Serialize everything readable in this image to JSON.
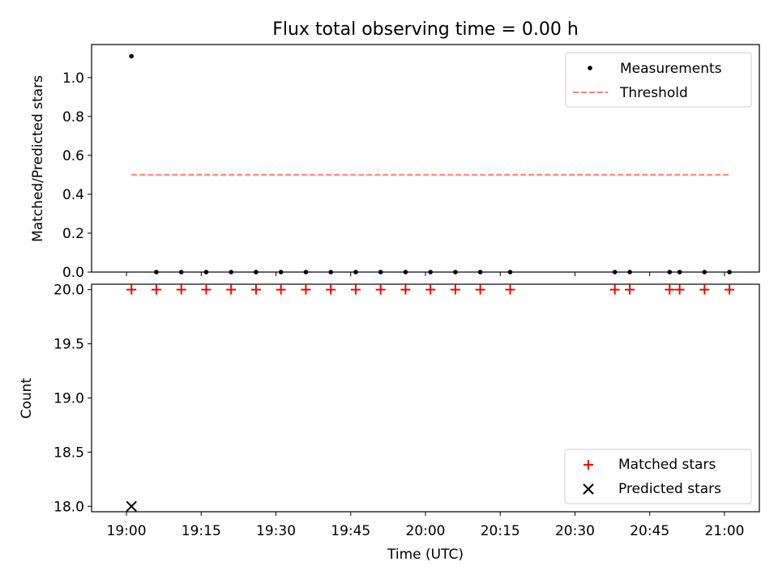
{
  "chart_data": [
    {
      "type": "scatter",
      "title": "Flux total observing time = 0.00 h",
      "xlabel": "",
      "ylabel": "Matched/Predicted stars",
      "xlim": [
        "18:53",
        "21:07"
      ],
      "ylim": [
        0,
        1.17
      ],
      "yticks": [
        0.0,
        0.2,
        0.4,
        0.6,
        0.8,
        1.0
      ],
      "ytick_labels": [
        "0.0",
        "0.2",
        "0.4",
        "0.6",
        "0.8",
        "1.0"
      ],
      "xticks": [
        "19:00",
        "19:15",
        "19:30",
        "19:45",
        "20:00",
        "20:15",
        "20:30",
        "20:45",
        "21:00"
      ],
      "show_xtick_labels": false,
      "grid": false,
      "legend_position": "top-right",
      "series": [
        {
          "name": "Measurements",
          "kind": "scatter",
          "marker": "dot",
          "color": "#000000",
          "x": [
            "19:01",
            "19:06",
            "19:11",
            "19:16",
            "19:21",
            "19:26",
            "19:31",
            "19:36",
            "19:41",
            "19:46",
            "19:51",
            "19:56",
            "20:01",
            "20:06",
            "20:11",
            "20:17",
            "20:38",
            "20:41",
            "20:49",
            "20:51",
            "20:56",
            "21:01"
          ],
          "y": [
            1.11,
            0,
            0,
            0,
            0,
            0,
            0,
            0,
            0,
            0,
            0,
            0,
            0,
            0,
            0,
            0,
            0,
            0,
            0,
            0,
            0,
            0
          ]
        },
        {
          "name": "Threshold",
          "kind": "line",
          "style": "dashed",
          "color": "#ff7f7f",
          "x": [
            "19:01",
            "21:01"
          ],
          "y": [
            0.5,
            0.5
          ]
        }
      ]
    },
    {
      "type": "scatter",
      "title": "",
      "xlabel": "Time (UTC)",
      "ylabel": "Count",
      "xlim": [
        "18:53",
        "21:07"
      ],
      "ylim": [
        17.95,
        20.05
      ],
      "yticks": [
        18.0,
        18.5,
        19.0,
        19.5,
        20.0
      ],
      "ytick_labels": [
        "18.0",
        "18.5",
        "19.0",
        "19.5",
        "20.0"
      ],
      "xticks": [
        "19:00",
        "19:15",
        "19:30",
        "19:45",
        "20:00",
        "20:15",
        "20:30",
        "20:45",
        "21:00"
      ],
      "xtick_labels": [
        "19:00",
        "19:15",
        "19:30",
        "19:45",
        "20:00",
        "20:15",
        "20:30",
        "20:45",
        "21:00"
      ],
      "show_xtick_labels": true,
      "grid": false,
      "legend_position": "bottom-right",
      "series": [
        {
          "name": "Matched stars",
          "kind": "scatter",
          "marker": "plus",
          "color": "#ff0000",
          "x": [
            "19:01",
            "19:06",
            "19:11",
            "19:16",
            "19:21",
            "19:26",
            "19:31",
            "19:36",
            "19:41",
            "19:46",
            "19:51",
            "19:56",
            "20:01",
            "20:06",
            "20:11",
            "20:17",
            "20:38",
            "20:41",
            "20:49",
            "20:51",
            "20:56",
            "21:01"
          ],
          "y": [
            20,
            20,
            20,
            20,
            20,
            20,
            20,
            20,
            20,
            20,
            20,
            20,
            20,
            20,
            20,
            20,
            20,
            20,
            20,
            20,
            20,
            20
          ]
        },
        {
          "name": "Predicted stars",
          "kind": "scatter",
          "marker": "x",
          "color": "#000000",
          "x": [
            "19:01"
          ],
          "y": [
            18
          ]
        }
      ]
    }
  ]
}
